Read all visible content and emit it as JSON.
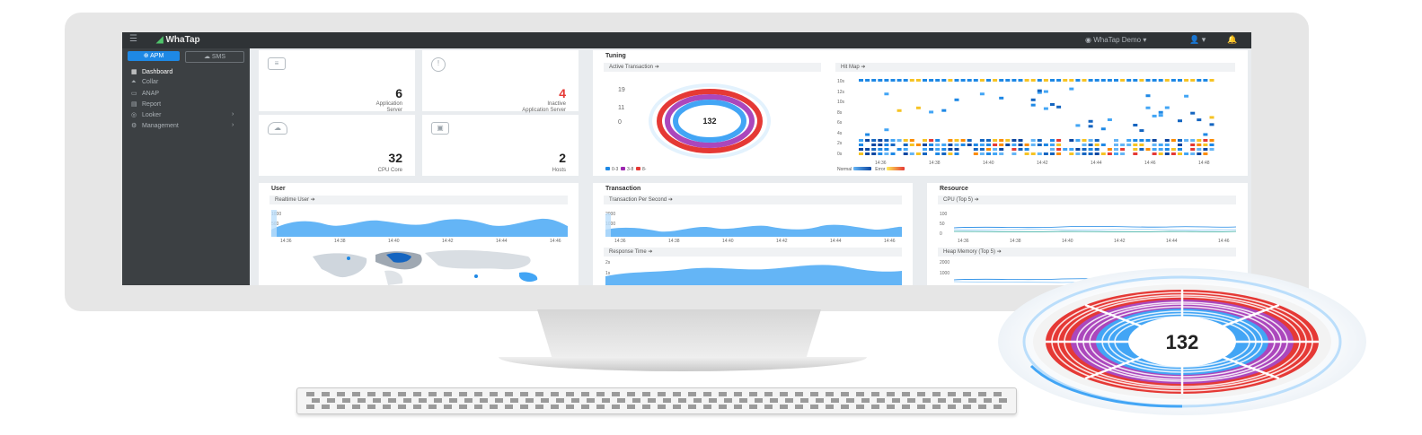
{
  "topbar": {
    "brand": "WhaTap",
    "project": "WhaTap Demo",
    "user_icon": "user-icon",
    "bell_icon": "bell-icon"
  },
  "sidebar": {
    "tabs": [
      {
        "label": "APM"
      },
      {
        "label": "SMS"
      }
    ],
    "items": [
      {
        "label": "Dashboard",
        "icon": "dashboard-icon",
        "active": true
      },
      {
        "label": "Collar",
        "icon": "collar-icon"
      },
      {
        "label": "ANAP",
        "icon": "anap-icon"
      },
      {
        "label": "Report",
        "icon": "report-icon"
      },
      {
        "label": "Looker",
        "icon": "looker-icon",
        "expandable": true
      },
      {
        "label": "Management",
        "icon": "management-icon",
        "expandable": true
      }
    ]
  },
  "stats": [
    {
      "value": "6",
      "label1": "Application",
      "label2": "Server",
      "color": "#222222"
    },
    {
      "value": "4",
      "label1": "Inactive",
      "label2": "Application Server",
      "color": "#e53935"
    },
    {
      "value": "32",
      "label1": "CPU Core",
      "label2": "",
      "color": "#222222"
    },
    {
      "value": "2",
      "label1": "Hosts",
      "label2": "",
      "color": "#222222"
    }
  ],
  "tuning": {
    "title": "Tuning",
    "active_tx": {
      "label": "Active Transaction",
      "axis": [
        "19",
        "11",
        "0"
      ],
      "center_value": "132",
      "legend": [
        {
          "label": "0-3",
          "color": "#1e88e5"
        },
        {
          "label": "3-8",
          "color": "#9c27b0"
        },
        {
          "label": "8-",
          "color": "#e53935"
        }
      ]
    },
    "hitmap": {
      "label": "Hit Map",
      "y_ticks": [
        "10s",
        "12s",
        "10s",
        "8s",
        "6s",
        "4s",
        "2s",
        "0s"
      ],
      "x_ticks": [
        "14:36",
        "14:38",
        "14:40",
        "14:42",
        "14:44",
        "14:46",
        "14:48"
      ],
      "legend": [
        {
          "label": "Normal",
          "color": "#1e6fd9"
        },
        {
          "label": "Error",
          "color": "#f6c324"
        }
      ]
    }
  },
  "user": {
    "title": "User",
    "realtime": "Realtime User",
    "y_ticks": [
      "1000",
      "500",
      "0"
    ],
    "x_ticks": [
      "14:36",
      "14:38",
      "14:40",
      "14:42",
      "14:44",
      "14:46"
    ]
  },
  "transaction": {
    "title": "Transaction",
    "tps": "Transaction Per Second",
    "tps_y": [
      "2000",
      "1000",
      "0"
    ],
    "x_ticks": [
      "14:36",
      "14:38",
      "14:40",
      "14:42",
      "14:44",
      "14:46"
    ],
    "response": "Response Time",
    "rt_y": [
      "2s",
      "1s"
    ]
  },
  "resource": {
    "title": "Resource",
    "cpu": "CPU (Top 5)",
    "cpu_y": [
      "100",
      "50",
      "0"
    ],
    "x_ticks": [
      "14:36",
      "14:38",
      "14:40",
      "14:42",
      "14:44",
      "14:46"
    ],
    "heap": "Heap Memory (Top 5)",
    "heap_y": [
      "2000",
      "1000"
    ]
  },
  "callout": {
    "center_value": "132"
  },
  "colors": {
    "accent": "#1e88e5",
    "purple": "#9c27b0",
    "red": "#e53935",
    "topbar": "#2f3336",
    "sidebar": "#3c4043"
  }
}
